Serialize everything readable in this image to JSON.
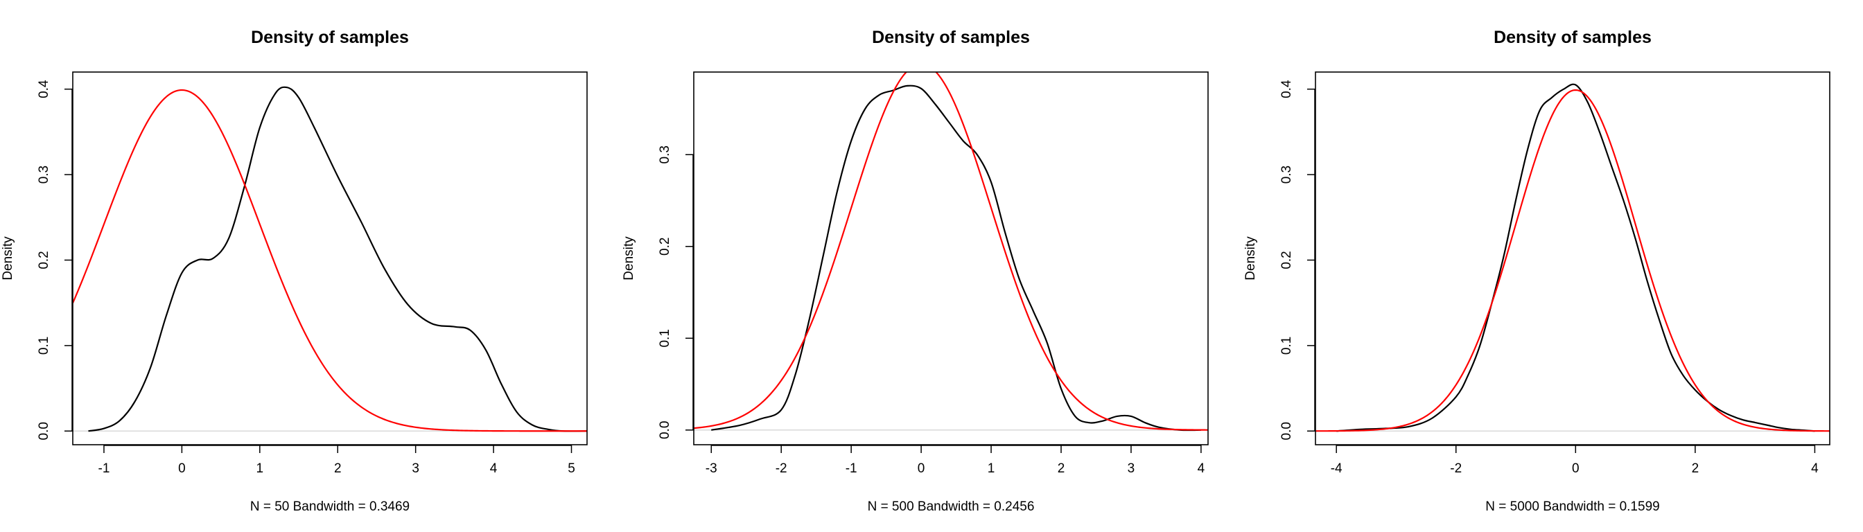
{
  "figure": {
    "background": "#ffffff",
    "colors": {
      "sample_density": "#000000",
      "normal_density": "#ff0000",
      "zero_line": "#d9d9d9"
    }
  },
  "chart_data": [
    {
      "type": "line",
      "title": "Density of samples",
      "xlabel": "N = 50   Bandwidth = 0.3469",
      "ylabel": "Density",
      "xlim": [
        -1.4,
        5.2
      ],
      "ylim": [
        -0.016,
        0.42
      ],
      "xticks": [
        -1,
        0,
        1,
        2,
        3,
        4,
        5
      ],
      "yticks": [
        0.0,
        0.1,
        0.2,
        0.3,
        0.4
      ],
      "xtick_labels": [
        "-1",
        "0",
        "1",
        "2",
        "3",
        "4",
        "5"
      ],
      "ytick_labels": [
        "0.0",
        "0.1",
        "0.2",
        "0.3",
        "0.4"
      ],
      "grid": false,
      "series": [
        {
          "color": "#000000",
          "x": [
            -1.2,
            -1.0,
            -0.8,
            -0.6,
            -0.4,
            -0.2,
            0.0,
            0.2,
            0.4,
            0.6,
            0.8,
            1.0,
            1.2,
            1.35,
            1.5,
            1.7,
            2.0,
            2.3,
            2.6,
            2.9,
            3.2,
            3.5,
            3.7,
            3.9,
            4.1,
            4.3,
            4.5,
            4.7,
            4.9,
            5.2
          ],
          "y": [
            0.0,
            0.003,
            0.012,
            0.035,
            0.075,
            0.135,
            0.185,
            0.2,
            0.202,
            0.225,
            0.285,
            0.355,
            0.395,
            0.402,
            0.39,
            0.355,
            0.298,
            0.245,
            0.19,
            0.148,
            0.126,
            0.122,
            0.118,
            0.095,
            0.055,
            0.022,
            0.007,
            0.002,
            0.0,
            0.0
          ]
        },
        {
          "color": "#ff0000",
          "function": "standard normal density",
          "x_range": [
            -1.4,
            5.2
          ]
        }
      ]
    },
    {
      "type": "line",
      "title": "Density of samples",
      "xlabel": "N = 500   Bandwidth = 0.2456",
      "ylabel": "Density",
      "xlim": [
        -3.25,
        4.1
      ],
      "ylim": [
        -0.016,
        0.39
      ],
      "xticks": [
        -3,
        -2,
        -1,
        0,
        1,
        2,
        3,
        4
      ],
      "yticks": [
        0.0,
        0.1,
        0.2,
        0.3
      ],
      "xtick_labels": [
        "-3",
        "-2",
        "-1",
        "0",
        "1",
        "2",
        "3",
        "4"
      ],
      "ytick_labels": [
        "0.0",
        "0.1",
        "0.2",
        "0.3"
      ],
      "grid": false,
      "series": [
        {
          "color": "#000000",
          "x": [
            -3.0,
            -2.6,
            -2.3,
            -2.0,
            -1.8,
            -1.6,
            -1.4,
            -1.2,
            -1.0,
            -0.8,
            -0.6,
            -0.4,
            -0.2,
            0.0,
            0.2,
            0.4,
            0.6,
            0.8,
            1.0,
            1.2,
            1.4,
            1.6,
            1.8,
            2.0,
            2.2,
            2.4,
            2.6,
            2.8,
            3.0,
            3.2,
            3.4,
            3.7,
            4.0
          ],
          "y": [
            0.0,
            0.005,
            0.012,
            0.022,
            0.06,
            0.12,
            0.19,
            0.26,
            0.315,
            0.35,
            0.365,
            0.37,
            0.375,
            0.372,
            0.355,
            0.335,
            0.315,
            0.3,
            0.27,
            0.215,
            0.165,
            0.13,
            0.095,
            0.045,
            0.015,
            0.008,
            0.01,
            0.015,
            0.015,
            0.008,
            0.003,
            0.0,
            0.0
          ]
        },
        {
          "color": "#ff0000",
          "function": "standard normal density",
          "x_range": [
            -3.25,
            4.1
          ]
        }
      ]
    },
    {
      "type": "line",
      "title": "Density of samples",
      "xlabel": "N = 5000   Bandwidth = 0.1599",
      "ylabel": "Density",
      "xlim": [
        -4.35,
        4.25
      ],
      "ylim": [
        -0.016,
        0.42
      ],
      "xticks": [
        -4,
        -2,
        0,
        2,
        4
      ],
      "yticks": [
        0.0,
        0.1,
        0.2,
        0.3,
        0.4
      ],
      "xtick_labels": [
        "-4",
        "-2",
        "0",
        "2",
        "4"
      ],
      "ytick_labels": [
        "0.0",
        "0.1",
        "0.2",
        "0.3",
        "0.4"
      ],
      "grid": false,
      "series": [
        {
          "color": "#000000",
          "x": [
            -4.0,
            -3.6,
            -3.2,
            -2.8,
            -2.4,
            -2.0,
            -1.8,
            -1.6,
            -1.4,
            -1.2,
            -1.0,
            -0.8,
            -0.6,
            -0.4,
            -0.2,
            0.0,
            0.2,
            0.4,
            0.6,
            0.8,
            1.0,
            1.2,
            1.4,
            1.6,
            1.8,
            2.0,
            2.2,
            2.4,
            2.6,
            2.8,
            3.0,
            3.2,
            3.4,
            3.6,
            3.8,
            4.0
          ],
          "y": [
            0.0,
            0.002,
            0.003,
            0.005,
            0.015,
            0.04,
            0.065,
            0.1,
            0.15,
            0.205,
            0.27,
            0.33,
            0.375,
            0.39,
            0.4,
            0.405,
            0.385,
            0.35,
            0.31,
            0.27,
            0.225,
            0.175,
            0.13,
            0.09,
            0.065,
            0.048,
            0.035,
            0.025,
            0.018,
            0.013,
            0.01,
            0.007,
            0.004,
            0.002,
            0.001,
            0.0
          ]
        },
        {
          "color": "#ff0000",
          "function": "standard normal density",
          "x_range": [
            -4.35,
            4.25
          ]
        }
      ]
    }
  ]
}
